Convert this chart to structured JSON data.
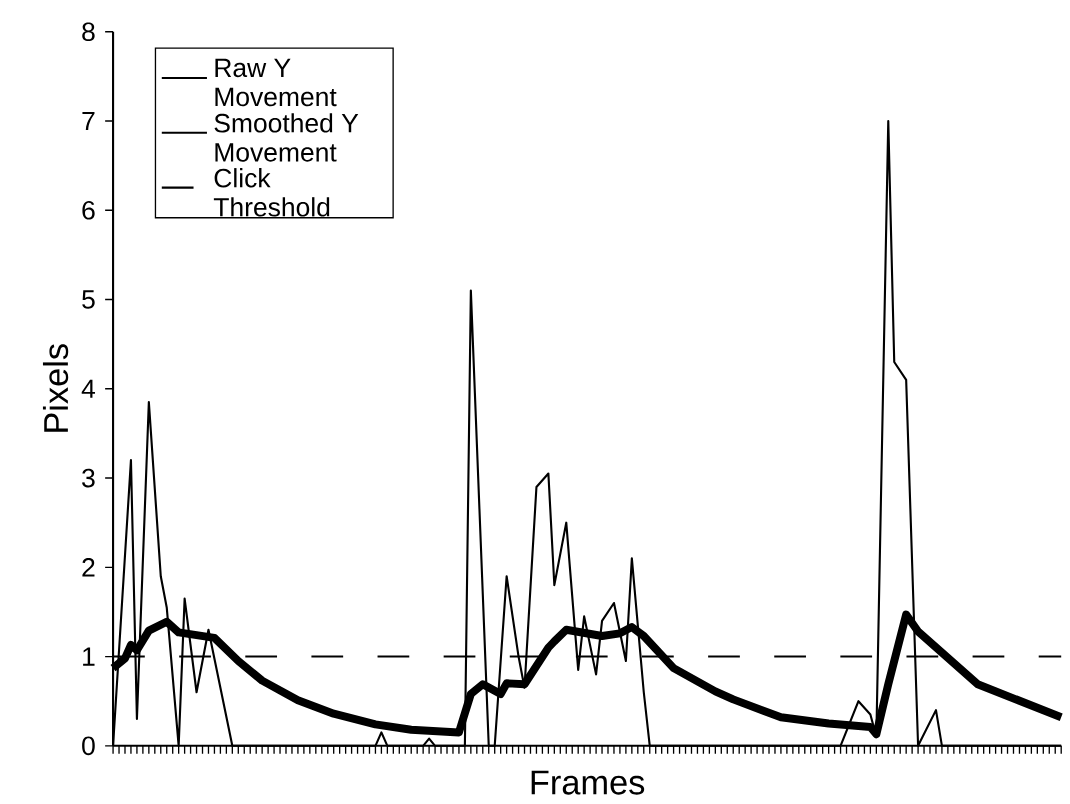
{
  "chart_data": {
    "type": "line",
    "xlabel": "Frames",
    "ylabel": "Pixels",
    "categories": [
      null,
      null,
      null,
      null,
      null,
      null,
      null,
      null,
      null,
      null,
      null,
      null,
      null,
      null,
      null,
      null,
      null,
      null,
      null,
      null,
      null,
      null,
      null,
      null,
      null,
      null,
      null,
      null,
      null,
      null,
      null,
      null,
      null,
      null,
      null,
      null,
      null,
      null,
      null,
      null,
      null,
      null,
      null,
      null,
      null,
      null,
      null,
      null,
      null,
      null,
      null,
      null,
      null,
      null,
      null,
      null,
      null,
      null,
      null,
      null,
      null,
      null,
      null,
      null,
      null,
      null,
      null,
      null,
      null,
      null,
      null,
      null,
      null,
      null,
      null,
      null,
      null,
      null,
      null,
      null,
      null,
      null,
      null,
      null,
      null,
      null,
      null,
      null,
      null,
      null,
      null,
      null,
      null,
      null,
      null,
      null,
      null,
      null,
      null,
      null,
      null,
      null,
      null,
      null,
      null,
      null,
      null,
      null,
      null,
      null,
      null,
      null,
      null,
      null,
      null,
      null,
      null,
      null,
      null,
      null,
      null,
      null,
      null,
      null,
      null,
      null,
      null,
      null,
      null,
      null,
      null,
      null,
      null,
      null,
      null,
      null,
      null,
      null,
      null,
      null,
      null,
      null,
      null,
      null,
      null,
      null,
      null,
      null,
      null,
      null,
      null,
      null,
      null,
      null,
      null,
      null,
      null,
      null,
      null,
      null
    ],
    "ylim": [
      0,
      8
    ],
    "yticks": [
      0,
      1,
      2,
      3,
      4,
      5,
      6,
      7,
      8
    ],
    "tick_labels": "y",
    "legend": "top left",
    "marker": "none",
    "series": [
      {
        "name": "Raw Y Movement",
        "color": "#000000",
        "line_style": "solid",
        "values": [
          0,
          null,
          null,
          3.2,
          0.3,
          null,
          3.85,
          null,
          1.9,
          1.55,
          null,
          0,
          1.65,
          null,
          0.6,
          null,
          1.3,
          null,
          null,
          null,
          0,
          0,
          0,
          0,
          0,
          0,
          0,
          0,
          0,
          0,
          0,
          0,
          0,
          0,
          0,
          0,
          0,
          0,
          0,
          0,
          0,
          0,
          0,
          0,
          0,
          0.15,
          0,
          0,
          0,
          0,
          0,
          0,
          0,
          0.08,
          0,
          0,
          0,
          0,
          0,
          0,
          5.1,
          null,
          null,
          0,
          0,
          null,
          1.9,
          null,
          1.0,
          0.65,
          null,
          2.9,
          null,
          3.05,
          1.8,
          null,
          2.5,
          null,
          0.85,
          1.45,
          null,
          0.8,
          1.4,
          null,
          1.6,
          null,
          0.95,
          2.1,
          null,
          0.6,
          0,
          0,
          0,
          0,
          0,
          0,
          0,
          0,
          0,
          0,
          0,
          0,
          0,
          0,
          0,
          0,
          0,
          0,
          0,
          0,
          0,
          0,
          0,
          0,
          0,
          0,
          0,
          0,
          0,
          0,
          0,
          0,
          0,
          null,
          null,
          0.5,
          null,
          0.35,
          0.1,
          null,
          7.0,
          4.3,
          null,
          4.1,
          null,
          0,
          null,
          null,
          0.4,
          0,
          0,
          0,
          0,
          0,
          0,
          0,
          0,
          0,
          0,
          0,
          0,
          0,
          0,
          0,
          0,
          0,
          0,
          0,
          0,
          0
        ]
      },
      {
        "name": "Smoothed Y Movement",
        "color": "#000000",
        "line_style": "solid",
        "values": [
          0.87,
          null,
          0.98,
          1.13,
          1.07,
          null,
          1.29,
          null,
          null,
          1.39,
          null,
          1.27,
          null,
          null,
          1.24,
          null,
          null,
          1.21,
          null,
          null,
          null,
          0.95,
          null,
          null,
          null,
          0.73,
          null,
          null,
          null,
          null,
          null,
          0.51,
          null,
          null,
          null,
          null,
          null,
          0.36,
          null,
          null,
          null,
          null,
          null,
          null,
          0.24,
          null,
          null,
          null,
          null,
          null,
          0.18,
          null,
          null,
          null,
          null,
          null,
          null,
          null,
          0.15,
          null,
          0.58,
          null,
          0.69,
          null,
          null,
          0.58,
          0.7,
          null,
          null,
          0.69,
          null,
          null,
          null,
          1.1,
          1.17,
          null,
          1.3,
          null,
          null,
          null,
          null,
          null,
          1.23,
          null,
          null,
          1.26,
          null,
          1.33,
          null,
          1.23,
          null,
          null,
          null,
          null,
          0.87,
          null,
          null,
          null,
          null,
          null,
          null,
          0.61,
          null,
          null,
          0.52,
          null,
          null,
          null,
          null,
          null,
          null,
          null,
          0.32,
          null,
          null,
          null,
          null,
          null,
          null,
          null,
          0.25,
          null,
          null,
          null,
          null,
          null,
          null,
          0.21,
          0.13,
          null,
          0.69,
          null,
          null,
          1.47,
          null,
          1.28,
          null,
          null,
          null,
          null,
          null,
          null,
          null,
          null,
          null,
          0.69,
          null,
          null,
          null,
          null,
          null,
          null,
          null,
          null,
          null,
          null,
          null,
          null,
          null,
          0.32
        ]
      },
      {
        "name": "Click Threshold",
        "color": "#000000",
        "line_style": "dashed",
        "values": [
          1,
          null,
          null,
          null,
          null,
          null,
          null,
          null,
          null,
          null,
          null,
          null,
          null,
          null,
          null,
          null,
          null,
          null,
          null,
          null,
          null,
          null,
          null,
          null,
          null,
          null,
          null,
          null,
          null,
          null,
          null,
          null,
          null,
          null,
          null,
          null,
          null,
          null,
          null,
          null,
          null,
          null,
          null,
          null,
          null,
          null,
          null,
          null,
          null,
          null,
          null,
          null,
          null,
          null,
          null,
          null,
          null,
          null,
          null,
          null,
          null,
          null,
          null,
          null,
          null,
          null,
          null,
          null,
          null,
          null,
          null,
          null,
          null,
          null,
          null,
          null,
          null,
          null,
          null,
          null,
          null,
          null,
          null,
          null,
          null,
          null,
          null,
          null,
          null,
          null,
          null,
          null,
          null,
          null,
          null,
          null,
          null,
          null,
          null,
          null,
          null,
          null,
          null,
          null,
          null,
          null,
          null,
          null,
          null,
          null,
          null,
          null,
          null,
          null,
          null,
          null,
          null,
          null,
          null,
          null,
          null,
          null,
          null,
          null,
          null,
          null,
          null,
          null,
          null,
          null,
          null,
          null,
          null,
          null,
          null,
          null,
          null,
          null,
          null,
          null,
          null,
          null,
          null,
          null,
          null,
          null,
          null,
          null,
          null,
          null,
          null,
          null,
          null,
          null,
          null,
          null,
          null,
          null,
          null,
          1
        ]
      }
    ]
  }
}
